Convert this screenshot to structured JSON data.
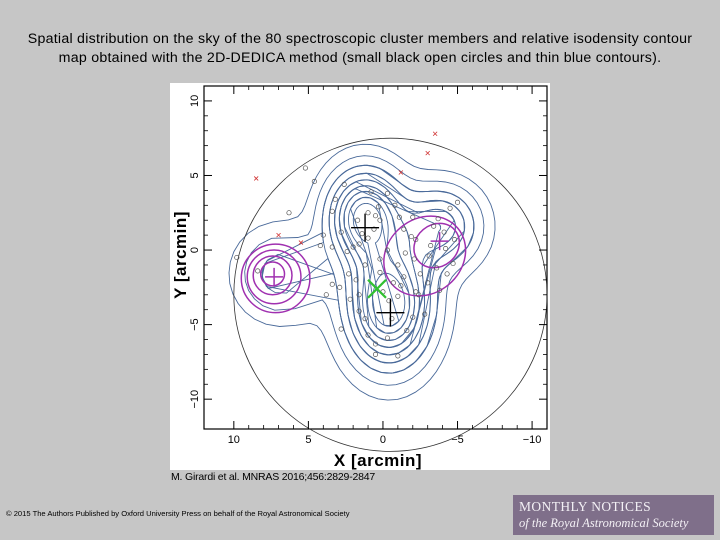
{
  "slide": {
    "title": "Spatial distribution on the sky of the 80 spectroscopic cluster members and relative isodensity contour map obtained with the 2D-DEDICA method (small black open circles and thin blue contours).",
    "citation": "M. Girardi et al. MNRAS 2016;456:2829-2847",
    "copyright": "© 2015 The Authors Published by Oxford University Press on behalf of the Royal Astronomical Society",
    "logo_line1": "MONTHLY NOTICES",
    "logo_line2": "of the Royal Astronomical Society"
  },
  "chart_data": {
    "type": "scatter",
    "xlabel": "X [arcmin]",
    "ylabel": "Y [arcmin]",
    "xlim": [
      12,
      -11
    ],
    "ylim": [
      -12,
      11
    ],
    "x_ticks": [
      10,
      5,
      0,
      -5,
      -10
    ],
    "y_ticks": [
      10,
      5,
      0,
      -5,
      -10
    ],
    "x_tick_labels": [
      "10",
      "5",
      "0",
      "−5",
      "−10"
    ],
    "y_tick_labels": [
      "10",
      "5",
      "0",
      "−5",
      "−10"
    ],
    "colors": {
      "members": "#555555",
      "contours": "#4a6a9a",
      "groups": "#a030b0",
      "crosses": "#000000",
      "outliers": "#d03030",
      "bcg": "#30c030",
      "circle": "#333333"
    },
    "circle": {
      "x": -0.5,
      "y": -3.0,
      "r": 10.5
    },
    "big_crosses": [
      {
        "x": 1.2,
        "y": 1.5
      },
      {
        "x": -0.5,
        "y": -4.2
      }
    ],
    "small_crosses": [
      {
        "x": 7.3,
        "y": -1.8
      },
      {
        "x": -3.8,
        "y": 0.6
      }
    ],
    "bcg_marker": {
      "x": 0.4,
      "y": -2.6
    },
    "outliers": [
      {
        "x": -3.5,
        "y": 7.8
      },
      {
        "x": -3.0,
        "y": 6.5
      },
      {
        "x": 8.5,
        "y": 4.8
      },
      {
        "x": 7.0,
        "y": 1.0
      },
      {
        "x": 5.5,
        "y": 0.5
      },
      {
        "x": -1.2,
        "y": 5.2
      }
    ],
    "members": [
      {
        "x": 5.2,
        "y": 5.5
      },
      {
        "x": 4.6,
        "y": 4.6
      },
      {
        "x": 3.2,
        "y": 3.4
      },
      {
        "x": 3.4,
        "y": 2.6
      },
      {
        "x": 3.4,
        "y": -2.3
      },
      {
        "x": 3.8,
        "y": -3.0
      },
      {
        "x": 2.9,
        "y": -2.5
      },
      {
        "x": 2.3,
        "y": -1.6
      },
      {
        "x": 2.0,
        "y": 0.2
      },
      {
        "x": 1.2,
        "y": -1.0
      },
      {
        "x": 9.8,
        "y": -0.5
      },
      {
        "x": 0.8,
        "y": 3.9
      },
      {
        "x": 1.7,
        "y": 2.0
      },
      {
        "x": 1.0,
        "y": 2.5
      },
      {
        "x": 0.3,
        "y": 2.9
      },
      {
        "x": 0.5,
        "y": 2.3
      },
      {
        "x": 0.2,
        "y": 2.0
      },
      {
        "x": 1.4,
        "y": 1.1
      },
      {
        "x": 0.6,
        "y": 1.4
      },
      {
        "x": 1.0,
        "y": 0.8
      },
      {
        "x": 1.6,
        "y": 0.4
      },
      {
        "x": -0.8,
        "y": 3.0
      },
      {
        "x": -1.1,
        "y": 2.2
      },
      {
        "x": -0.3,
        "y": 0.0
      },
      {
        "x": 0.2,
        "y": -0.6
      },
      {
        "x": -1.0,
        "y": -1.0
      },
      {
        "x": -0.7,
        "y": -2.2
      },
      {
        "x": -1.2,
        "y": -2.4
      },
      {
        "x": -1.0,
        "y": -3.1
      },
      {
        "x": -0.4,
        "y": -3.4
      },
      {
        "x": 0.0,
        "y": -2.8
      },
      {
        "x": -0.6,
        "y": -4.6
      },
      {
        "x": -1.4,
        "y": -1.8
      },
      {
        "x": -1.5,
        "y": -0.2
      },
      {
        "x": -1.9,
        "y": 0.9
      },
      {
        "x": -2.2,
        "y": 0.7
      },
      {
        "x": -2.1,
        "y": -0.6
      },
      {
        "x": -2.5,
        "y": -1.6
      },
      {
        "x": -2.4,
        "y": -3.0
      },
      {
        "x": -3.0,
        "y": -2.2
      },
      {
        "x": -3.1,
        "y": -0.4
      },
      {
        "x": -3.2,
        "y": 0.3
      },
      {
        "x": -3.4,
        "y": 1.6
      },
      {
        "x": -3.7,
        "y": 2.1
      },
      {
        "x": -4.2,
        "y": 0.1
      },
      {
        "x": -4.7,
        "y": -0.9
      },
      {
        "x": -4.8,
        "y": 0.7
      },
      {
        "x": -4.5,
        "y": 2.8
      },
      {
        "x": -5.0,
        "y": 3.2
      },
      {
        "x": -4.1,
        "y": 1.2
      },
      {
        "x": -3.6,
        "y": -1.2
      },
      {
        "x": -4.3,
        "y": -1.6
      },
      {
        "x": 2.2,
        "y": -3.3
      },
      {
        "x": 1.6,
        "y": -4.1
      },
      {
        "x": 1.2,
        "y": -4.6
      },
      {
        "x": 1.0,
        "y": -5.7
      },
      {
        "x": 0.5,
        "y": -6.3
      },
      {
        "x": -0.3,
        "y": -5.9
      },
      {
        "x": -1.6,
        "y": -5.4
      },
      {
        "x": -2.0,
        "y": -4.5
      },
      {
        "x": -2.8,
        "y": -4.3
      },
      {
        "x": -1.0,
        "y": -7.1
      },
      {
        "x": 0.5,
        "y": -7.0
      },
      {
        "x": 2.8,
        "y": -5.3
      },
      {
        "x": 3.4,
        "y": 0.2
      },
      {
        "x": 4.0,
        "y": 1.0
      },
      {
        "x": 4.2,
        "y": 0.3
      },
      {
        "x": 2.6,
        "y": 4.4
      },
      {
        "x": 2.4,
        "y": -0.1
      },
      {
        "x": 1.8,
        "y": -2.0
      },
      {
        "x": 0.2,
        "y": -1.5
      },
      {
        "x": -2.0,
        "y": 2.2
      },
      {
        "x": -1.4,
        "y": 1.4
      },
      {
        "x": -2.2,
        "y": -2.8
      },
      {
        "x": 1.6,
        "y": -3.0
      },
      {
        "x": -0.3,
        "y": 3.8
      },
      {
        "x": 2.8,
        "y": 1.2
      },
      {
        "x": -3.8,
        "y": -2.7
      },
      {
        "x": 6.3,
        "y": 2.5
      },
      {
        "x": 8.4,
        "y": -1.4
      }
    ],
    "group_rings": [
      {
        "x": 7.2,
        "y": -1.9,
        "rx": 2.3,
        "ry": 2.3,
        "ang": 0
      },
      {
        "x": 7.3,
        "y": -1.8,
        "rx": 1.8,
        "ry": 1.8,
        "ang": 0
      },
      {
        "x": 7.4,
        "y": -1.7,
        "rx": 1.3,
        "ry": 1.3,
        "ang": 0
      },
      {
        "x": 7.4,
        "y": -1.6,
        "rx": 0.8,
        "ry": 0.8,
        "ang": 0
      },
      {
        "x": -2.8,
        "y": -0.4,
        "rx": 2.9,
        "ry": 2.5,
        "ang": -40
      },
      {
        "x": -3.6,
        "y": 0.3,
        "rx": 1.6,
        "ry": 1.4,
        "ang": -40
      }
    ]
  }
}
